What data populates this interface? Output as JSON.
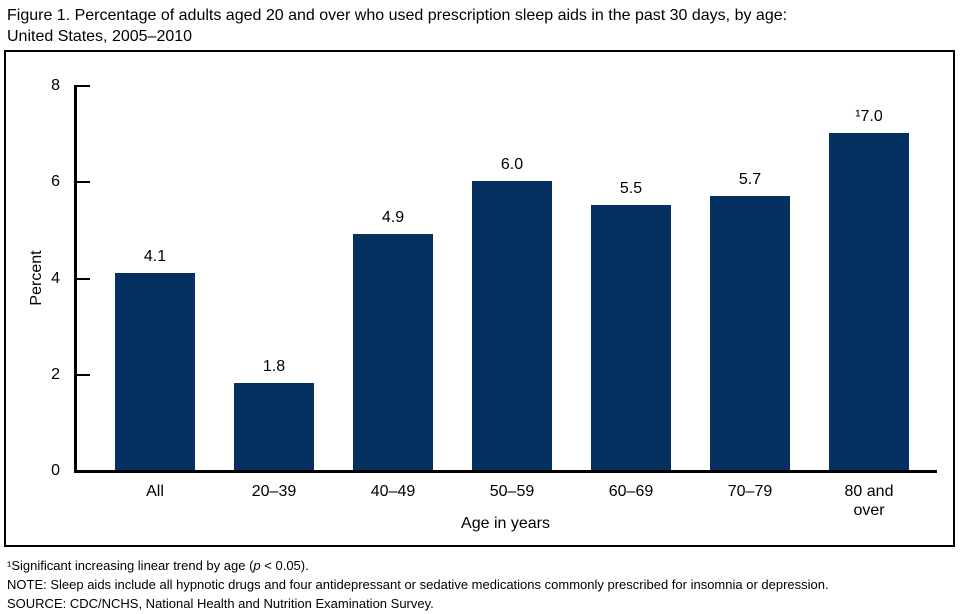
{
  "title": {
    "line1": "Figure 1. Percentage of adults aged 20 and over who used prescription sleep aids in the past 30 days, by age:",
    "line2": "United States, 2005–2010"
  },
  "chart_data": {
    "type": "bar",
    "title": "Percentage of adults aged 20 and over who used prescription sleep aids in the past 30 days, by age: United States, 2005–2010",
    "categories": [
      "All",
      "20–39",
      "40–49",
      "50–59",
      "60–69",
      "70–79",
      "80 and over"
    ],
    "values": [
      4.1,
      1.8,
      4.9,
      6.0,
      5.5,
      5.7,
      7.0
    ],
    "bar_labels": [
      "4.1",
      "1.8",
      "4.9",
      "6.0",
      "5.5",
      "5.7",
      "¹7.0"
    ],
    "xlabel": "Age in years",
    "ylabel": "Percent",
    "ylim": [
      0,
      8
    ],
    "yticks": [
      0,
      2,
      4,
      6,
      8
    ],
    "bar_color": "#04305f",
    "axis_color": "#000000",
    "grid": false,
    "legend": "none"
  },
  "footnotes": {
    "trend_prefix": "¹Significant increasing linear trend by age (",
    "trend_p": "p",
    "trend_suffix": " < 0.05).",
    "note": "NOTE: Sleep aids include all hypnotic drugs and four antidepressant or sedative medications commonly prescribed for insomnia or depression.",
    "source": "SOURCE: CDC/NCHS, National Health and Nutrition Examination Survey."
  }
}
